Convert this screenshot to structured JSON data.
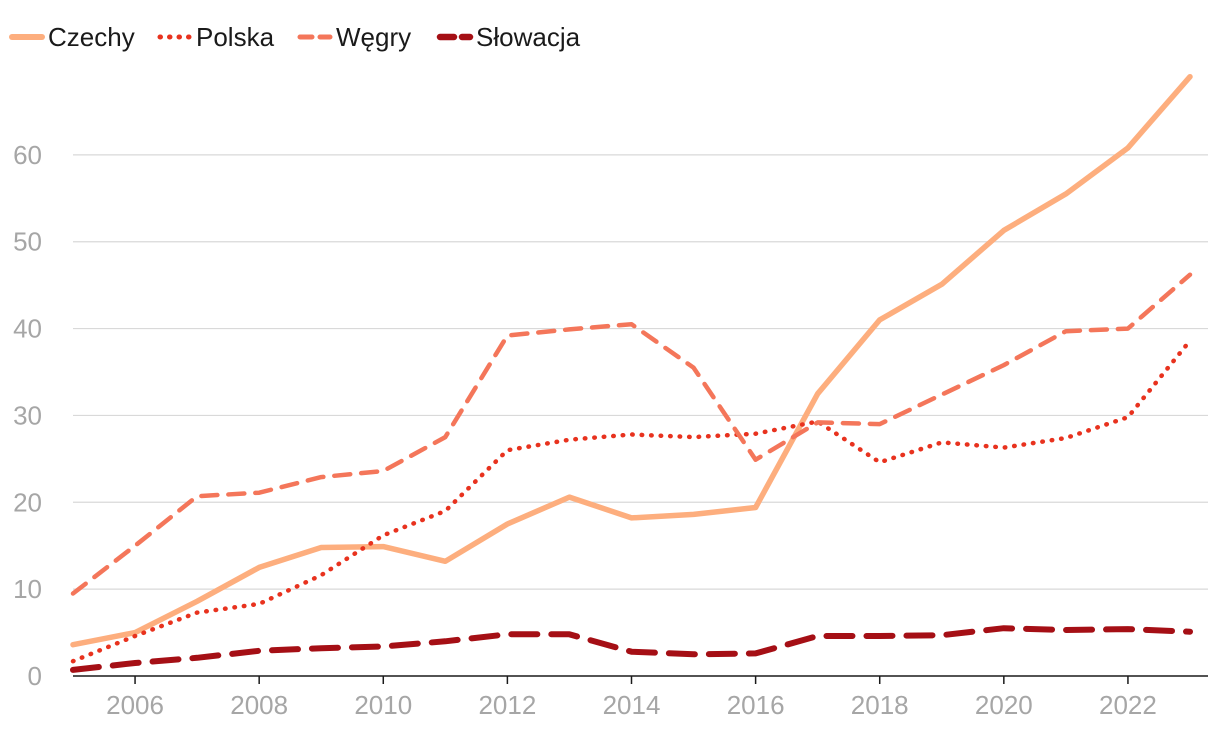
{
  "chart_data": {
    "type": "line",
    "title": "",
    "xlabel": "",
    "ylabel": "",
    "x": [
      2005,
      2006,
      2007,
      2008,
      2009,
      2010,
      2011,
      2012,
      2013,
      2014,
      2015,
      2016,
      2017,
      2018,
      2019,
      2020,
      2021,
      2022,
      2023
    ],
    "xticks": [
      2006,
      2008,
      2010,
      2012,
      2014,
      2016,
      2018,
      2020,
      2022
    ],
    "yticks": [
      0,
      10,
      20,
      30,
      40,
      50,
      60
    ],
    "xlim": [
      2005,
      2023
    ],
    "ylim": [
      0,
      70
    ],
    "grid": true,
    "legend_position": "top-left",
    "series": [
      {
        "name": "Czechy",
        "color": "#FDAE7E",
        "dash": "solid",
        "values": [
          3.6,
          5.0,
          8.6,
          12.5,
          14.8,
          14.9,
          13.2,
          17.5,
          20.6,
          18.2,
          18.6,
          19.4,
          32.5,
          41.0,
          45.1,
          51.3,
          55.5,
          60.8,
          69.0
        ]
      },
      {
        "name": "Polska",
        "color": "#E8321E",
        "dash": "dotted",
        "values": [
          1.7,
          4.6,
          7.3,
          8.3,
          11.6,
          16.2,
          19.0,
          26.0,
          27.2,
          27.8,
          27.5,
          27.9,
          29.3,
          24.6,
          26.9,
          26.3,
          27.4,
          29.8,
          38.6
        ]
      },
      {
        "name": "Węgry",
        "color": "#F4765A",
        "dash": "dashed",
        "values": [
          9.5,
          15.0,
          20.7,
          21.1,
          22.9,
          23.6,
          27.5,
          39.2,
          39.9,
          40.5,
          35.5,
          24.9,
          29.2,
          29.0,
          32.4,
          35.8,
          39.7,
          40.0,
          46.2
        ]
      },
      {
        "name": "Słowacja",
        "color": "#A50F15",
        "dash": "longdash",
        "values": [
          0.7,
          1.5,
          2.1,
          2.9,
          3.2,
          3.4,
          4.0,
          4.8,
          4.8,
          2.8,
          2.5,
          2.6,
          4.6,
          4.6,
          4.7,
          5.5,
          5.3,
          5.4,
          5.1
        ]
      }
    ]
  }
}
